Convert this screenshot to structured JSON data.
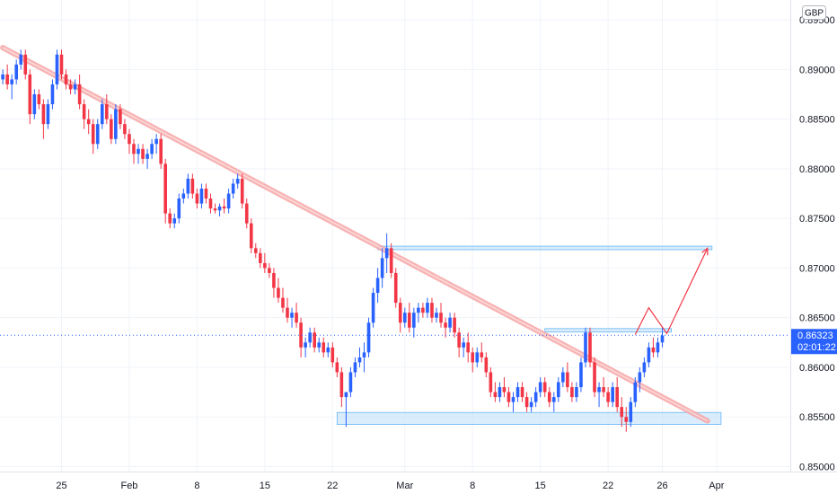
{
  "chart_data": {
    "type": "candlestick",
    "currency": "GBP",
    "y_ticks": [
      "0.85000",
      "0.85500",
      "0.86000",
      "0.86500",
      "0.87000",
      "0.87500",
      "0.88000",
      "0.88500",
      "0.89000",
      "0.89500"
    ],
    "ylim": [
      0.8495,
      0.897
    ],
    "x_ticks": [
      "25",
      "Feb",
      "8",
      "15",
      "22",
      "Mar",
      "8",
      "15",
      "22",
      "26",
      "Apr"
    ],
    "current_price": "0.86323",
    "countdown": "02:01:22",
    "colors": {
      "up": "#2962ff",
      "down": "#f23645",
      "trendline": "#f7a7a7",
      "zone": "#bbdefb",
      "zone_border": "#64b5f6",
      "projection": "#f23645",
      "price_label_bg": "#2962ff"
    },
    "trendline": {
      "from": [
        0,
        0.8922
      ],
      "to": [
        156,
        0.8546
      ]
    },
    "zones": [
      {
        "name": "top-resistance",
        "x": [
          83,
          157
        ],
        "y": [
          0.87185,
          0.8722
        ]
      },
      {
        "name": "breakout-level",
        "x": [
          120,
          148
        ],
        "y": [
          0.86355,
          0.8639
        ]
      },
      {
        "name": "support-base",
        "x": [
          74,
          159
        ],
        "y": [
          0.85425,
          0.85545
        ]
      }
    ],
    "projection_path": [
      [
        140,
        0.8633
      ],
      [
        143,
        0.866
      ],
      [
        147,
        0.8634
      ],
      [
        156,
        0.872
      ]
    ],
    "ohlc": [
      [
        0.889,
        0.89,
        0.8885,
        0.8895
      ],
      [
        0.8895,
        0.8905,
        0.888,
        0.8885
      ],
      [
        0.8885,
        0.8895,
        0.887,
        0.889
      ],
      [
        0.889,
        0.891,
        0.8885,
        0.8905
      ],
      [
        0.8905,
        0.892,
        0.89,
        0.8915
      ],
      [
        0.8915,
        0.892,
        0.889,
        0.8895
      ],
      [
        0.8895,
        0.89,
        0.8845,
        0.8855
      ],
      [
        0.8855,
        0.888,
        0.885,
        0.8875
      ],
      [
        0.8875,
        0.888,
        0.886,
        0.8865
      ],
      [
        0.8865,
        0.887,
        0.883,
        0.8845
      ],
      [
        0.8845,
        0.887,
        0.884,
        0.8865
      ],
      [
        0.8865,
        0.889,
        0.886,
        0.8885
      ],
      [
        0.8885,
        0.892,
        0.888,
        0.8915
      ],
      [
        0.8915,
        0.892,
        0.889,
        0.8895
      ],
      [
        0.8895,
        0.89,
        0.888,
        0.8885
      ],
      [
        0.8885,
        0.889,
        0.8875,
        0.888
      ],
      [
        0.888,
        0.889,
        0.8875,
        0.8885
      ],
      [
        0.8885,
        0.8895,
        0.886,
        0.8865
      ],
      [
        0.8865,
        0.887,
        0.884,
        0.885
      ],
      [
        0.885,
        0.886,
        0.8835,
        0.8845
      ],
      [
        0.8845,
        0.885,
        0.8815,
        0.8825
      ],
      [
        0.8825,
        0.885,
        0.882,
        0.8845
      ],
      [
        0.8845,
        0.887,
        0.884,
        0.8865
      ],
      [
        0.8865,
        0.8875,
        0.8845,
        0.885
      ],
      [
        0.885,
        0.8855,
        0.8825,
        0.883
      ],
      [
        0.883,
        0.8865,
        0.8825,
        0.886
      ],
      [
        0.886,
        0.8865,
        0.884,
        0.8845
      ],
      [
        0.8845,
        0.885,
        0.883,
        0.8835
      ],
      [
        0.8835,
        0.884,
        0.8815,
        0.8825
      ],
      [
        0.8825,
        0.883,
        0.8805,
        0.8815
      ],
      [
        0.8815,
        0.8825,
        0.8805,
        0.882
      ],
      [
        0.882,
        0.8825,
        0.8805,
        0.881
      ],
      [
        0.881,
        0.882,
        0.88,
        0.8815
      ],
      [
        0.8815,
        0.883,
        0.881,
        0.8825
      ],
      [
        0.8825,
        0.8835,
        0.8815,
        0.883
      ],
      [
        0.883,
        0.8835,
        0.88,
        0.8805
      ],
      [
        0.8805,
        0.881,
        0.8745,
        0.8755
      ],
      [
        0.8755,
        0.876,
        0.874,
        0.8745
      ],
      [
        0.8745,
        0.8755,
        0.874,
        0.875
      ],
      [
        0.875,
        0.8775,
        0.8745,
        0.877
      ],
      [
        0.877,
        0.878,
        0.8765,
        0.8775
      ],
      [
        0.8775,
        0.8795,
        0.877,
        0.879
      ],
      [
        0.879,
        0.8795,
        0.877,
        0.8775
      ],
      [
        0.8775,
        0.878,
        0.876,
        0.8765
      ],
      [
        0.8765,
        0.8785,
        0.876,
        0.878
      ],
      [
        0.878,
        0.8785,
        0.8765,
        0.877
      ],
      [
        0.877,
        0.8775,
        0.8755,
        0.876
      ],
      [
        0.876,
        0.8765,
        0.8755,
        0.8758
      ],
      [
        0.8758,
        0.8765,
        0.8752,
        0.8762
      ],
      [
        0.8762,
        0.877,
        0.8755,
        0.876
      ],
      [
        0.876,
        0.878,
        0.8755,
        0.8775
      ],
      [
        0.8775,
        0.879,
        0.877,
        0.8785
      ],
      [
        0.8785,
        0.8795,
        0.878,
        0.879
      ],
      [
        0.879,
        0.8795,
        0.876,
        0.8765
      ],
      [
        0.8765,
        0.877,
        0.874,
        0.8745
      ],
      [
        0.8745,
        0.875,
        0.8715,
        0.872
      ],
      [
        0.872,
        0.8725,
        0.871,
        0.8715
      ],
      [
        0.8715,
        0.872,
        0.87,
        0.8705
      ],
      [
        0.8705,
        0.8715,
        0.8695,
        0.87
      ],
      [
        0.87,
        0.8705,
        0.869,
        0.8695
      ],
      [
        0.8695,
        0.87,
        0.867,
        0.868
      ],
      [
        0.868,
        0.869,
        0.8665,
        0.867
      ],
      [
        0.867,
        0.868,
        0.8655,
        0.866
      ],
      [
        0.866,
        0.867,
        0.8645,
        0.865
      ],
      [
        0.865,
        0.866,
        0.864,
        0.8655
      ],
      [
        0.8655,
        0.8665,
        0.864,
        0.8645
      ],
      [
        0.8645,
        0.865,
        0.861,
        0.862
      ],
      [
        0.862,
        0.863,
        0.861,
        0.8625
      ],
      [
        0.8625,
        0.864,
        0.862,
        0.8635
      ],
      [
        0.8635,
        0.864,
        0.8615,
        0.862
      ],
      [
        0.862,
        0.863,
        0.8615,
        0.8625
      ],
      [
        0.8625,
        0.863,
        0.861,
        0.8615
      ],
      [
        0.8615,
        0.8625,
        0.861,
        0.862
      ],
      [
        0.862,
        0.8625,
        0.86,
        0.8605
      ],
      [
        0.8605,
        0.861,
        0.859,
        0.8595
      ],
      [
        0.8595,
        0.86,
        0.856,
        0.857
      ],
      [
        0.857,
        0.8575,
        0.854,
        0.8575
      ],
      [
        0.8575,
        0.86,
        0.857,
        0.8595
      ],
      [
        0.8595,
        0.861,
        0.859,
        0.8605
      ],
      [
        0.8605,
        0.862,
        0.86,
        0.861
      ],
      [
        0.861,
        0.8625,
        0.8595,
        0.8615
      ],
      [
        0.8615,
        0.865,
        0.861,
        0.8645
      ],
      [
        0.8645,
        0.868,
        0.864,
        0.8675
      ],
      [
        0.8675,
        0.87,
        0.8665,
        0.869
      ],
      [
        0.869,
        0.872,
        0.868,
        0.871
      ],
      [
        0.871,
        0.8735,
        0.8695,
        0.872
      ],
      [
        0.872,
        0.8725,
        0.869,
        0.8695
      ],
      [
        0.8695,
        0.87,
        0.866,
        0.8665
      ],
      [
        0.8665,
        0.867,
        0.8635,
        0.8645
      ],
      [
        0.8645,
        0.866,
        0.864,
        0.8655
      ],
      [
        0.8655,
        0.8665,
        0.8635,
        0.864
      ],
      [
        0.864,
        0.866,
        0.863,
        0.8655
      ],
      [
        0.8655,
        0.8665,
        0.8645,
        0.866
      ],
      [
        0.866,
        0.8665,
        0.865,
        0.8655
      ],
      [
        0.8655,
        0.867,
        0.865,
        0.8665
      ],
      [
        0.8665,
        0.867,
        0.8645,
        0.865
      ],
      [
        0.865,
        0.866,
        0.8645,
        0.8655
      ],
      [
        0.8655,
        0.8665,
        0.864,
        0.8645
      ],
      [
        0.8645,
        0.865,
        0.863,
        0.864
      ],
      [
        0.864,
        0.8655,
        0.8635,
        0.865
      ],
      [
        0.865,
        0.8655,
        0.863,
        0.8635
      ],
      [
        0.8635,
        0.864,
        0.861,
        0.862
      ],
      [
        0.862,
        0.863,
        0.861,
        0.8625
      ],
      [
        0.8625,
        0.8635,
        0.8605,
        0.8615
      ],
      [
        0.8615,
        0.862,
        0.8595,
        0.8605
      ],
      [
        0.8605,
        0.862,
        0.86,
        0.8615
      ],
      [
        0.8615,
        0.8625,
        0.8605,
        0.861
      ],
      [
        0.861,
        0.8615,
        0.859,
        0.8595
      ],
      [
        0.8595,
        0.86,
        0.857,
        0.8575
      ],
      [
        0.8575,
        0.8585,
        0.8565,
        0.857
      ],
      [
        0.857,
        0.8585,
        0.8565,
        0.858
      ],
      [
        0.858,
        0.859,
        0.857,
        0.8575
      ],
      [
        0.8575,
        0.858,
        0.856,
        0.8565
      ],
      [
        0.8565,
        0.8575,
        0.8555,
        0.857
      ],
      [
        0.857,
        0.8585,
        0.8565,
        0.858
      ],
      [
        0.858,
        0.8585,
        0.8565,
        0.857
      ],
      [
        0.857,
        0.8575,
        0.8555,
        0.856
      ],
      [
        0.856,
        0.857,
        0.8555,
        0.8565
      ],
      [
        0.8565,
        0.858,
        0.856,
        0.8575
      ],
      [
        0.8575,
        0.859,
        0.857,
        0.8585
      ],
      [
        0.8585,
        0.859,
        0.857,
        0.8575
      ],
      [
        0.8575,
        0.858,
        0.856,
        0.8565
      ],
      [
        0.8565,
        0.8575,
        0.8555,
        0.857
      ],
      [
        0.857,
        0.859,
        0.8565,
        0.8585
      ],
      [
        0.8585,
        0.86,
        0.858,
        0.8595
      ],
      [
        0.8595,
        0.8605,
        0.8575,
        0.858
      ],
      [
        0.858,
        0.8585,
        0.8565,
        0.857
      ],
      [
        0.857,
        0.8585,
        0.8565,
        0.858
      ],
      [
        0.858,
        0.861,
        0.8575,
        0.8605
      ],
      [
        0.8605,
        0.864,
        0.86,
        0.8635
      ],
      [
        0.8635,
        0.864,
        0.86,
        0.8605
      ],
      [
        0.8605,
        0.861,
        0.857,
        0.8575
      ],
      [
        0.8575,
        0.8585,
        0.856,
        0.858
      ],
      [
        0.858,
        0.859,
        0.857,
        0.8575
      ],
      [
        0.8575,
        0.858,
        0.856,
        0.8565
      ],
      [
        0.8565,
        0.8585,
        0.856,
        0.858
      ],
      [
        0.858,
        0.859,
        0.8555,
        0.856
      ],
      [
        0.856,
        0.857,
        0.854,
        0.855
      ],
      [
        0.855,
        0.856,
        0.8535,
        0.8545
      ],
      [
        0.8545,
        0.857,
        0.854,
        0.8565
      ],
      [
        0.8565,
        0.859,
        0.856,
        0.8585
      ],
      [
        0.8585,
        0.86,
        0.8575,
        0.8595
      ],
      [
        0.8595,
        0.861,
        0.859,
        0.8605
      ],
      [
        0.8605,
        0.8625,
        0.86,
        0.862
      ],
      [
        0.862,
        0.863,
        0.861,
        0.8615
      ],
      [
        0.8615,
        0.863,
        0.861,
        0.8625
      ],
      [
        0.8625,
        0.864,
        0.862,
        0.8632
      ]
    ]
  }
}
